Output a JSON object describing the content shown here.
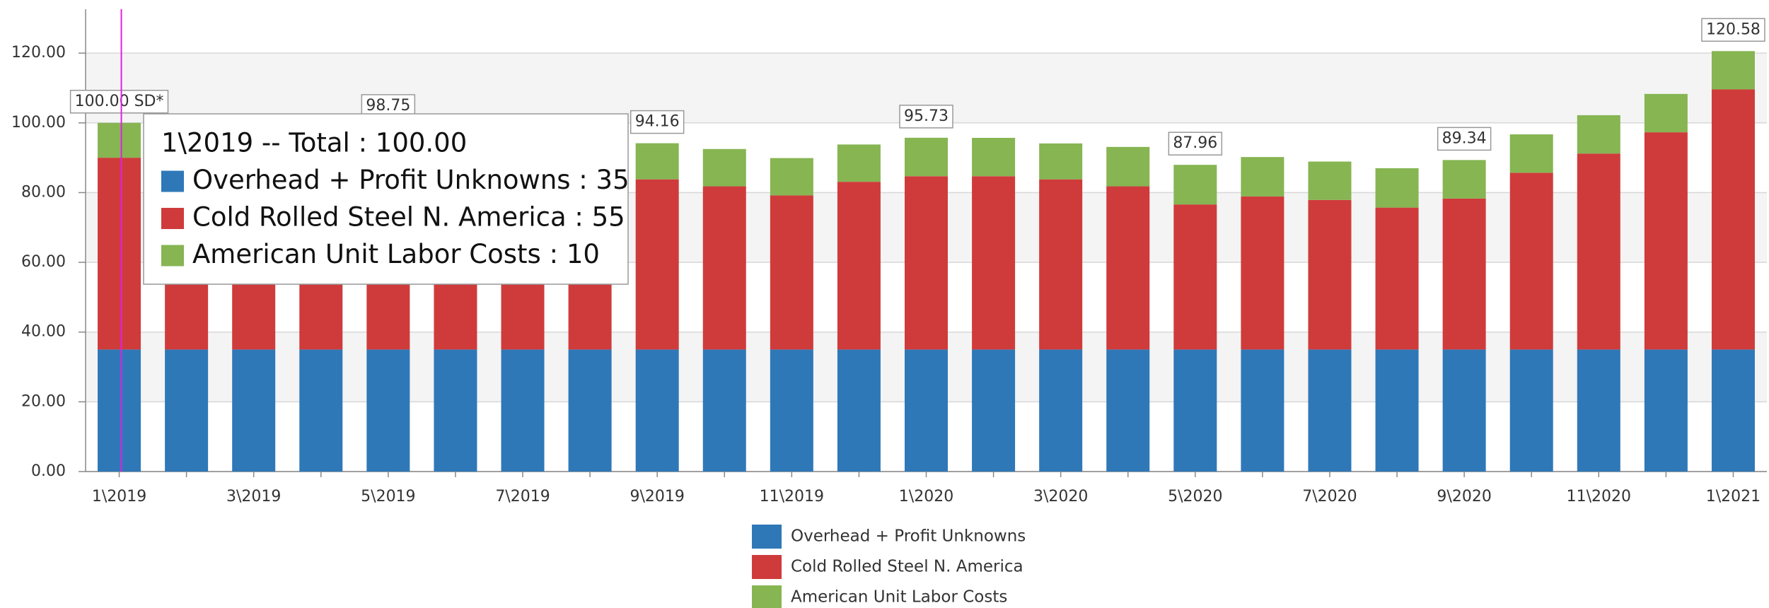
{
  "chart_data": {
    "type": "stacked_bar",
    "categories": [
      "1\\2019",
      null,
      "3\\2019",
      null,
      "5\\2019",
      null,
      "7\\2019",
      null,
      "9\\2019",
      null,
      "11\\2019",
      null,
      "1\\2020",
      null,
      "3\\2020",
      null,
      "5\\2020",
      null,
      "7\\2020",
      null,
      "9\\2020",
      null,
      "11\\2020",
      null,
      "1\\2021"
    ],
    "series": [
      {
        "name": "Overhead + Profit Unknowns",
        "color": "#2e78b8",
        "values": [
          35,
          35,
          35,
          35,
          35,
          35,
          35,
          35,
          35,
          35,
          35,
          35,
          35,
          35,
          35,
          35,
          35,
          35,
          35,
          35,
          35,
          35,
          35,
          35,
          35
        ]
      },
      {
        "name": "Cold Rolled Steel N. America",
        "color": "#cf3b3b",
        "values": [
          55,
          54,
          53.5,
          53,
          53.25,
          52,
          51,
          50,
          48.8,
          46.8,
          44.2,
          48.1,
          49.7,
          49.7,
          48.8,
          46.8,
          41.6,
          43.9,
          42.9,
          40.7,
          43.3,
          50.7,
          56.2,
          62.3,
          74.6
        ]
      },
      {
        "name": "American Unit Labor Costs",
        "color": "#86b552",
        "values": [
          10,
          10.5,
          10.5,
          10.5,
          10.5,
          10.5,
          10.5,
          10.5,
          10.36,
          10.7,
          10.7,
          10.7,
          11.03,
          11,
          10.3,
          11.3,
          11.36,
          11.3,
          11,
          11.3,
          11.04,
          11,
          11,
          11,
          10.98
        ]
      }
    ],
    "total_labels": [
      "100.00 SD*",
      null,
      null,
      null,
      "98.75",
      null,
      null,
      null,
      "94.16",
      null,
      null,
      null,
      "95.73",
      null,
      null,
      null,
      "87.96",
      null,
      null,
      null,
      "89.34",
      null,
      null,
      null,
      "120.58"
    ],
    "ylim": [
      0,
      132.6
    ],
    "yticks": [
      {
        "value": 0,
        "label": "0.00"
      },
      {
        "value": 20,
        "label": "20.00"
      },
      {
        "value": 40,
        "label": "40.00"
      },
      {
        "value": 60,
        "label": "60.00"
      },
      {
        "value": 80,
        "label": "80.00"
      },
      {
        "value": 100,
        "label": "100.00"
      },
      {
        "value": 120,
        "label": "120.00"
      }
    ],
    "grid": true,
    "legend": "bottom",
    "tooltip": {
      "lines": [
        "1\\2019 -- Total : 100.00",
        "Overhead + Profit Unknowns : 35",
        "Cold Rolled Steel N. America : 55",
        "American Unit Labor Costs : 10"
      ]
    }
  }
}
